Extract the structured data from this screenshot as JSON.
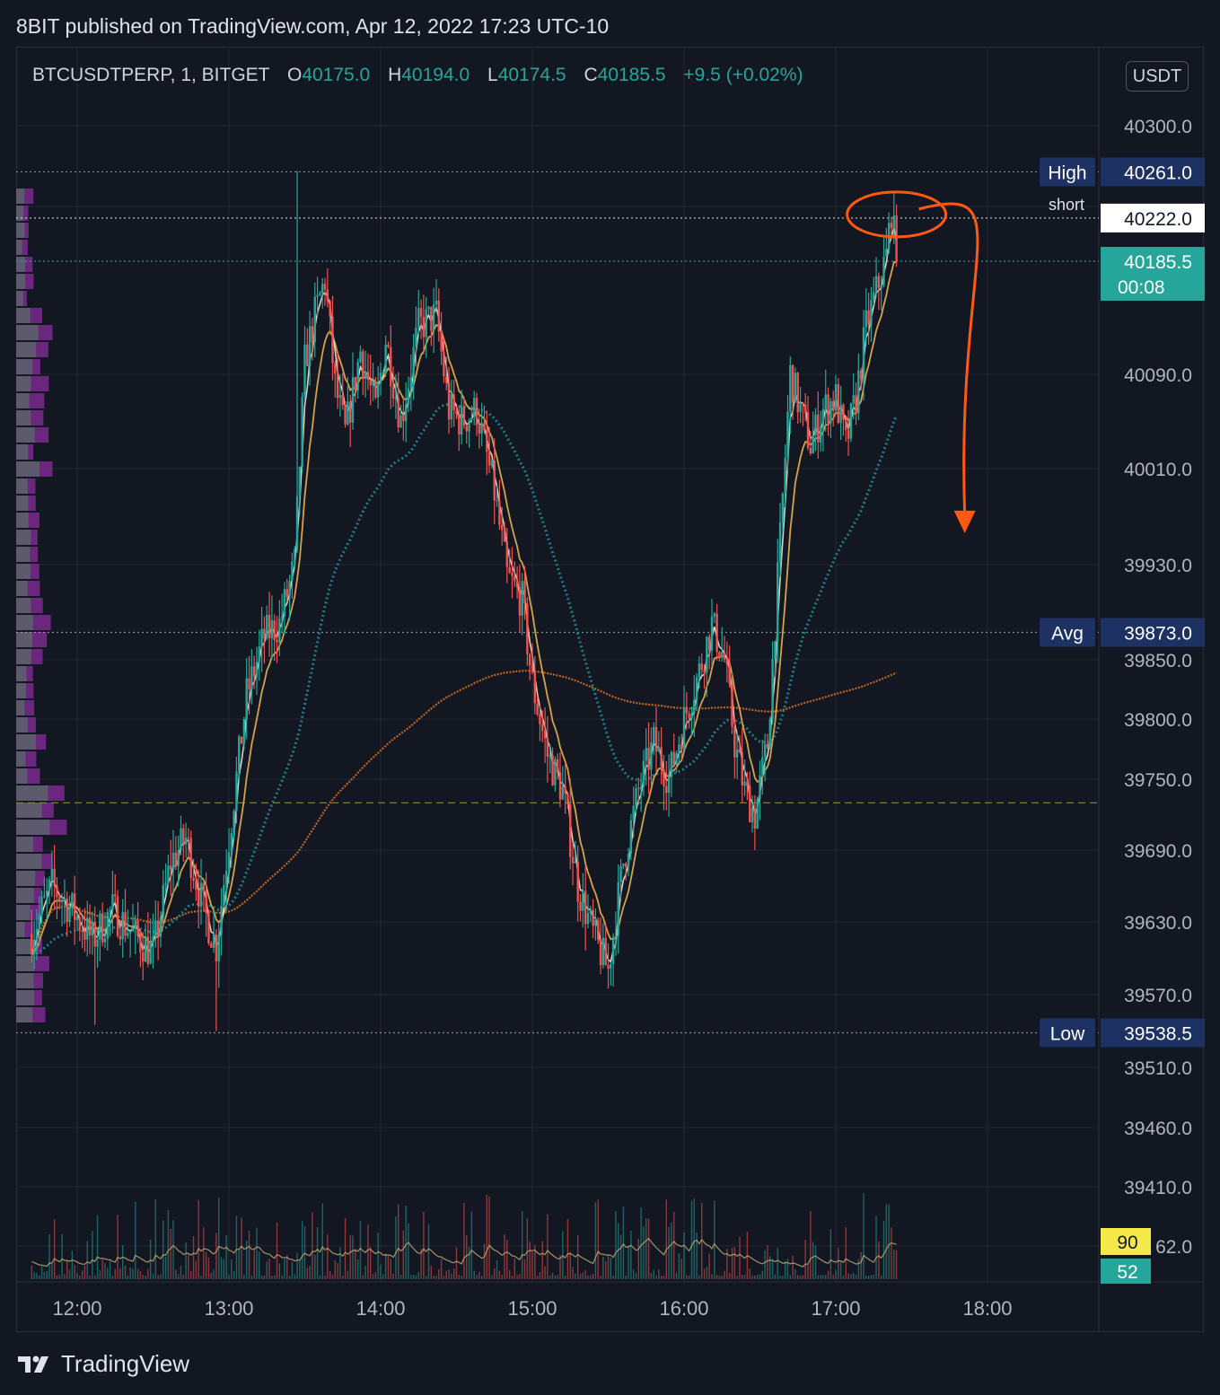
{
  "header": {
    "publish_line": "8BIT published on TradingView.com, Apr 12, 2022 17:23 UTC-10"
  },
  "legend": {
    "symbol": "BTCUSDTPERP, 1, BITGET",
    "o_label": "O",
    "o_value": "40175.0",
    "h_label": "H",
    "h_value": "40194.0",
    "l_label": "L",
    "l_value": "40174.5",
    "c_label": "C",
    "c_value": "40185.5",
    "change": "+9.5 (+0.02%)"
  },
  "currency_button": "USDT",
  "footer": {
    "brand": "TradingView"
  },
  "colors": {
    "up": "#26a69a",
    "down": "#ef5350",
    "background": "#131722",
    "grid": "#242733",
    "annotation": "#ff5a10",
    "ma_fast": "#f2e6d6",
    "ma_mid": "#d4a34a",
    "ma_teal": "#1f7e86",
    "vwap": "#c0651e",
    "volume_profile_purple": "#7b2a8e",
    "volume_profile_gray": "#5d606b"
  },
  "chart_data": {
    "type": "candlestick",
    "symbol": "BTCUSDTPERP",
    "interval": "1",
    "exchange": "BITGET",
    "currency": "USDT",
    "y_ticks": [
      "40300.0",
      "40090.0",
      "40010.0",
      "39930.0",
      "39850.0",
      "39800.0",
      "39750.0",
      "39690.0",
      "39630.0",
      "39570.0",
      "39510.0",
      "39460.0",
      "39410.0",
      "62.0"
    ],
    "x_ticks": [
      "12:00",
      "13:00",
      "14:00",
      "15:00",
      "16:00",
      "17:00",
      "18:00"
    ],
    "price_lines": [
      {
        "label": "High",
        "value": "40261.0"
      },
      {
        "label": "short",
        "value": "40222.0"
      },
      {
        "label": "",
        "value": "40185.5",
        "countdown": "00:08"
      },
      {
        "label": "Avg",
        "value": "39873.0"
      },
      {
        "label": "Low",
        "value": "39538.5"
      }
    ],
    "volume_badges": [
      "90",
      "52"
    ],
    "price_path": [
      [
        "11:42",
        39620
      ],
      [
        "11:50",
        39660
      ],
      [
        "11:58",
        39640
      ],
      [
        "12:06",
        39615
      ],
      [
        "12:14",
        39640
      ],
      [
        "12:22",
        39620
      ],
      [
        "12:30",
        39605
      ],
      [
        "12:37",
        39680
      ],
      [
        "12:43",
        39700
      ],
      [
        "12:50",
        39640
      ],
      [
        "12:55",
        39610
      ],
      [
        "13:00",
        39700
      ],
      [
        "13:07",
        39820
      ],
      [
        "13:14",
        39870
      ],
      [
        "13:20",
        39880
      ],
      [
        "13:26",
        39930
      ],
      [
        "13:30",
        40100
      ],
      [
        "13:34",
        40140
      ],
      [
        "13:38",
        40170
      ],
      [
        "13:42",
        40080
      ],
      [
        "13:46",
        40040
      ],
      [
        "13:52",
        40110
      ],
      [
        "13:58",
        40060
      ],
      [
        "14:02",
        40120
      ],
      [
        "14:08",
        40050
      ],
      [
        "14:15",
        40130
      ],
      [
        "14:22",
        40140
      ],
      [
        "14:27",
        40060
      ],
      [
        "14:32",
        40050
      ],
      [
        "14:38",
        40060
      ],
      [
        "14:45",
        39990
      ],
      [
        "14:50",
        39920
      ],
      [
        "14:56",
        39900
      ],
      [
        "15:00",
        39830
      ],
      [
        "15:06",
        39770
      ],
      [
        "15:12",
        39740
      ],
      [
        "15:18",
        39660
      ],
      [
        "15:24",
        39620
      ],
      [
        "15:30",
        39590
      ],
      [
        "15:36",
        39680
      ],
      [
        "15:42",
        39740
      ],
      [
        "15:48",
        39780
      ],
      [
        "15:54",
        39750
      ],
      [
        "16:00",
        39800
      ],
      [
        "16:06",
        39840
      ],
      [
        "16:11",
        39880
      ],
      [
        "16:16",
        39850
      ],
      [
        "16:20",
        39780
      ],
      [
        "16:24",
        39740
      ],
      [
        "16:28",
        39720
      ],
      [
        "16:33",
        39780
      ],
      [
        "16:38",
        39950
      ],
      [
        "16:42",
        40090
      ],
      [
        "16:46",
        40060
      ],
      [
        "16:50",
        40030
      ],
      [
        "16:55",
        40060
      ],
      [
        "17:00",
        40070
      ],
      [
        "17:04",
        40030
      ],
      [
        "17:08",
        40070
      ],
      [
        "17:12",
        40130
      ],
      [
        "17:16",
        40160
      ],
      [
        "17:20",
        40190
      ],
      [
        "17:22",
        40230
      ],
      [
        "17:24",
        40185.5
      ]
    ],
    "annotation": {
      "type": "arrow-down",
      "from_time": "17:24",
      "from_price": 40222,
      "to_time": "17:51",
      "to_price": 39960
    },
    "grid": true
  }
}
